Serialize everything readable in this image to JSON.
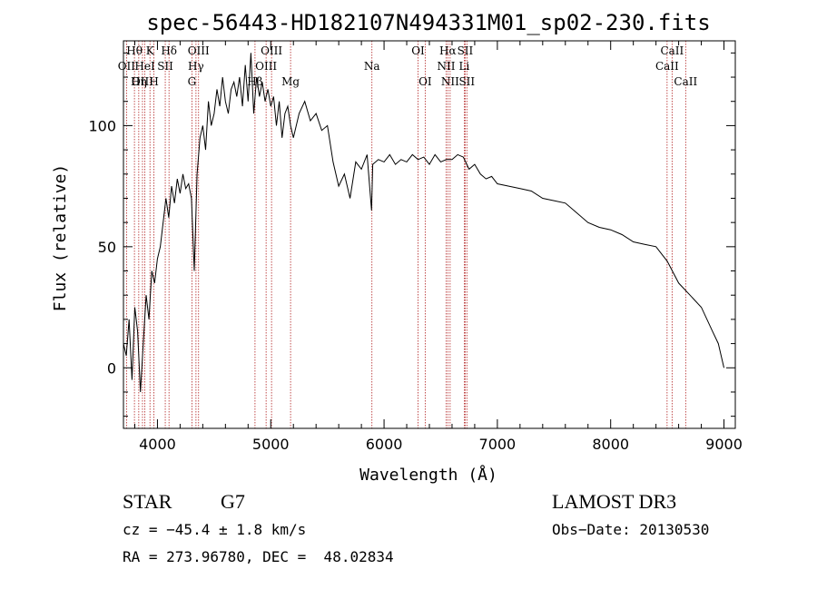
{
  "chart_data": {
    "type": "line",
    "title": "spec-56443-HD182107N494331M01_sp02-230.fits",
    "xlabel": "Wavelength (Å)",
    "ylabel": "Flux (relative)",
    "xlim": [
      3700,
      9100
    ],
    "ylim": [
      -25,
      135
    ],
    "xticks": [
      4000,
      5000,
      6000,
      7000,
      8000,
      9000
    ],
    "yticks": [
      0,
      50,
      100
    ],
    "grid": false,
    "series": [
      {
        "x": [
          3700,
          3725,
          3750,
          3775,
          3800,
          3825,
          3850,
          3875,
          3900,
          3925,
          3950,
          3975,
          4000,
          4025,
          4050,
          4075,
          4100,
          4125,
          4150,
          4175,
          4200,
          4225,
          4250,
          4275,
          4300,
          4325,
          4350,
          4375,
          4400,
          4425,
          4450,
          4475,
          4500,
          4525,
          4550,
          4575,
          4600,
          4625,
          4650,
          4675,
          4700,
          4725,
          4750,
          4775,
          4800,
          4825,
          4850,
          4875,
          4900,
          4925,
          4950,
          4975,
          5000,
          5025,
          5050,
          5075,
          5100,
          5125,
          5150,
          5175,
          5200,
          5250,
          5300,
          5350,
          5400,
          5450,
          5500,
          5550,
          5600,
          5650,
          5700,
          5750,
          5800,
          5850,
          5890,
          5900,
          5950,
          6000,
          6050,
          6100,
          6150,
          6200,
          6250,
          6300,
          6350,
          6400,
          6450,
          6500,
          6550,
          6600,
          6650,
          6700,
          6750,
          6800,
          6850,
          6900,
          6950,
          7000,
          7100,
          7200,
          7300,
          7400,
          7500,
          7600,
          7700,
          7800,
          7900,
          8000,
          8100,
          8200,
          8300,
          8400,
          8500,
          8600,
          8700,
          8800,
          8900,
          8950,
          9000
        ],
        "y": [
          10,
          5,
          20,
          -5,
          25,
          15,
          -10,
          10,
          30,
          20,
          40,
          35,
          45,
          50,
          60,
          70,
          62,
          75,
          68,
          78,
          72,
          80,
          74,
          76,
          70,
          40,
          80,
          95,
          100,
          90,
          110,
          100,
          105,
          115,
          108,
          120,
          110,
          105,
          115,
          118,
          112,
          120,
          108,
          125,
          110,
          130,
          105,
          120,
          112,
          118,
          110,
          115,
          108,
          112,
          100,
          110,
          95,
          105,
          108,
          100,
          95,
          105,
          110,
          102,
          105,
          98,
          100,
          85,
          75,
          80,
          70,
          85,
          82,
          88,
          65,
          84,
          86,
          85,
          88,
          84,
          86,
          85,
          88,
          86,
          87,
          84,
          88,
          85,
          86,
          86,
          88,
          87,
          82,
          84,
          80,
          78,
          79,
          76,
          75,
          74,
          73,
          70,
          69,
          68,
          64,
          60,
          58,
          57,
          55,
          52,
          51,
          50,
          44,
          35,
          30,
          25,
          15,
          10,
          0
        ]
      }
    ],
    "spectral_lines": [
      {
        "label": "Hθ",
        "x": 3797,
        "row": 0
      },
      {
        "label": "OII",
        "x": 3727,
        "row": 1
      },
      {
        "label": "OIII",
        "x": 3868,
        "row": 2
      },
      {
        "label": "K",
        "x": 3934,
        "row": 0
      },
      {
        "label": "H",
        "x": 3969,
        "row": 2
      },
      {
        "label": "HeI",
        "x": 3889,
        "row": 1
      },
      {
        "label": "Hη",
        "x": 3835,
        "row": 2
      },
      {
        "label": "Hδ",
        "x": 4102,
        "row": 0
      },
      {
        "label": "SII",
        "x": 4069,
        "row": 1
      },
      {
        "label": "OIII",
        "x": 4363,
        "row": 0
      },
      {
        "label": "Hγ",
        "x": 4340,
        "row": 1
      },
      {
        "label": "G",
        "x": 4304,
        "row": 2
      },
      {
        "label": "OIII",
        "x": 5007,
        "row": 0
      },
      {
        "label": "OIII",
        "x": 4959,
        "row": 1
      },
      {
        "label": "Hβ",
        "x": 4861,
        "row": 2
      },
      {
        "label": "Mg",
        "x": 5175,
        "row": 2
      },
      {
        "label": "Na",
        "x": 5893,
        "row": 1
      },
      {
        "label": "OI",
        "x": 6300,
        "row": 0
      },
      {
        "label": "OI",
        "x": 6363,
        "row": 2
      },
      {
        "label": "Hα",
        "x": 6563,
        "row": 0
      },
      {
        "label": "NII",
        "x": 6548,
        "row": 1
      },
      {
        "label": "NII",
        "x": 6583,
        "row": 2
      },
      {
        "label": "SII",
        "x": 6716,
        "row": 0
      },
      {
        "label": "Li",
        "x": 6708,
        "row": 1
      },
      {
        "label": "SII",
        "x": 6731,
        "row": 2
      },
      {
        "label": "CaII",
        "x": 8542,
        "row": 0
      },
      {
        "label": "CaII",
        "x": 8498,
        "row": 1
      },
      {
        "label": "CaII",
        "x": 8662,
        "row": 2
      }
    ]
  },
  "info": {
    "object_class": "STAR",
    "subclass": "G7",
    "survey": "LAMOST DR3",
    "cz": "cz = −45.4 ± 1.8 km/s",
    "obs_date": "Obs−Date: 20130530",
    "radec": "RA = 273.96780, DEC =  48.02834"
  },
  "colors": {
    "line": "#000000",
    "marker_line": "#b22222"
  }
}
